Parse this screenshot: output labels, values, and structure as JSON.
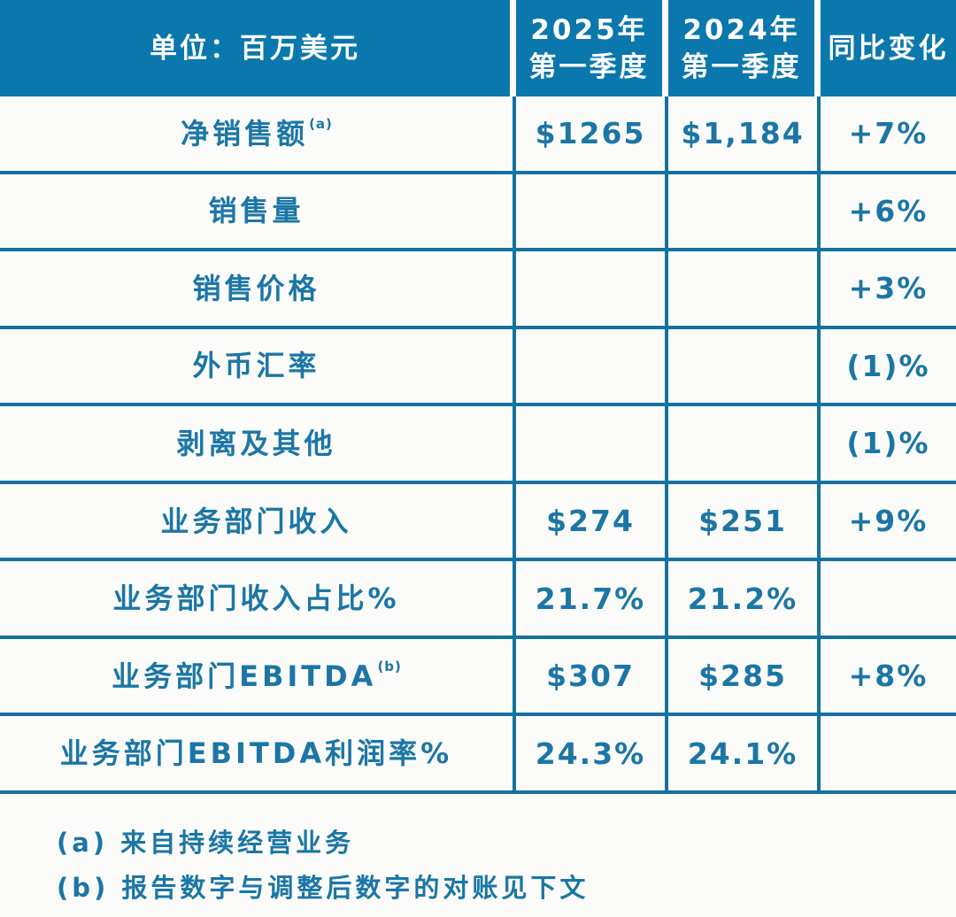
{
  "table": {
    "header": [
      "单位：百万美元",
      "2025年\n第一季度",
      "2024年\n第一季度",
      "同比变化"
    ],
    "rows": [
      {
        "label": "净销售额",
        "sup": "(a)",
        "q2025": "$1265",
        "q2024": "$1,184",
        "yoy": "+7%"
      },
      {
        "label": "销售量",
        "sup": "",
        "q2025": "",
        "q2024": "",
        "yoy": "+6%"
      },
      {
        "label": "销售价格",
        "sup": "",
        "q2025": "",
        "q2024": "",
        "yoy": "+3%"
      },
      {
        "label": "外币汇率",
        "sup": "",
        "q2025": "",
        "q2024": "",
        "yoy": "(1)%"
      },
      {
        "label": "剥离及其他",
        "sup": "",
        "q2025": "",
        "q2024": "",
        "yoy": "(1)%"
      },
      {
        "label": "业务部门收入",
        "sup": "",
        "q2025": "$274",
        "q2024": "$251",
        "yoy": "+9%"
      },
      {
        "label": "业务部门收入占比%",
        "sup": "",
        "q2025": "21.7%",
        "q2024": "21.2%",
        "yoy": ""
      },
      {
        "label": "业务部门EBITDA",
        "sup": "(b)",
        "q2025": "$307",
        "q2024": "$285",
        "yoy": "+8%"
      },
      {
        "label": "业务部门EBITDA利润率%",
        "sup": "",
        "q2025": "24.3%",
        "q2024": "24.1%",
        "yoy": ""
      }
    ]
  },
  "footnotes": [
    "(a) 来自持续经营业务",
    "(b) 报告数字与调整后数字的对账见下文"
  ],
  "colors": {
    "header_bg": "#0a78ad",
    "grid_line": "#1571a1",
    "body_text": "#1b76a6",
    "header_text": "#ffffff",
    "background": "#fbfbf9"
  },
  "chart_data": {
    "type": "table",
    "title": "单位：百万美元",
    "columns": [
      "单位：百万美元",
      "2025年第一季度",
      "2024年第一季度",
      "同比变化"
    ],
    "rows": [
      [
        "净销售额(a)",
        "$1265",
        "$1,184",
        "+7%"
      ],
      [
        "销售量",
        "",
        "",
        "+6%"
      ],
      [
        "销售价格",
        "",
        "",
        "+3%"
      ],
      [
        "外币汇率",
        "",
        "",
        "(1)%"
      ],
      [
        "剥离及其他",
        "",
        "",
        "(1)%"
      ],
      [
        "业务部门收入",
        "$274",
        "$251",
        "+9%"
      ],
      [
        "业务部门收入占比%",
        "21.7%",
        "21.2%",
        ""
      ],
      [
        "业务部门EBITDA(b)",
        "$307",
        "$285",
        "+8%"
      ],
      [
        "业务部门EBITDA利润率%",
        "24.3%",
        "24.1%",
        ""
      ]
    ],
    "footnotes": [
      "(a) 来自持续经营业务",
      "(b) 报告数字与调整后数字的对账见下文"
    ],
    "layout_hints": {
      "grid": "on",
      "header_fill": "#0a78ad",
      "first_column_share": 0.54
    }
  }
}
